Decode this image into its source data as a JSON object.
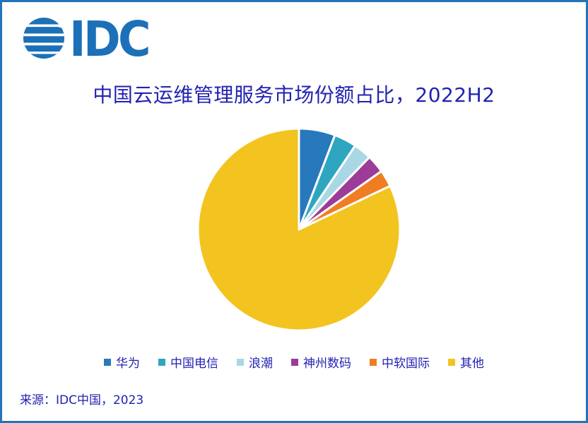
{
  "frame": {
    "border_color": "#2373b8",
    "background_color": "#ffffff"
  },
  "logo": {
    "text": "IDC",
    "color": "#1c70b8",
    "globe_icon": "idc-striped-globe"
  },
  "title": {
    "text": "中国云运维管理服务市场份额占比，2022H2",
    "color": "#2222b2"
  },
  "chart_data": {
    "type": "pie",
    "title": "中国云运维管理服务市场份额占比，2022H2",
    "labels": [
      "华为",
      "中国电信",
      "浪潮",
      "神州数码",
      "中软国际",
      "其他"
    ],
    "values_pct": [
      5.8,
      3.6,
      2.9,
      2.9,
      2.7,
      82.1
    ],
    "colors": [
      "#2878bc",
      "#2fa6c0",
      "#a9d8e4",
      "#9c3c98",
      "#f07d22",
      "#f3c41f"
    ],
    "start_angle_deg": 0,
    "direction": "clockwise",
    "slice_border_color": "#ffffff",
    "slice_border_width": 3,
    "data_labels": false,
    "legend_position": "bottom"
  },
  "source": {
    "text": "来源：IDC中国，2023",
    "color": "#2222b2"
  }
}
